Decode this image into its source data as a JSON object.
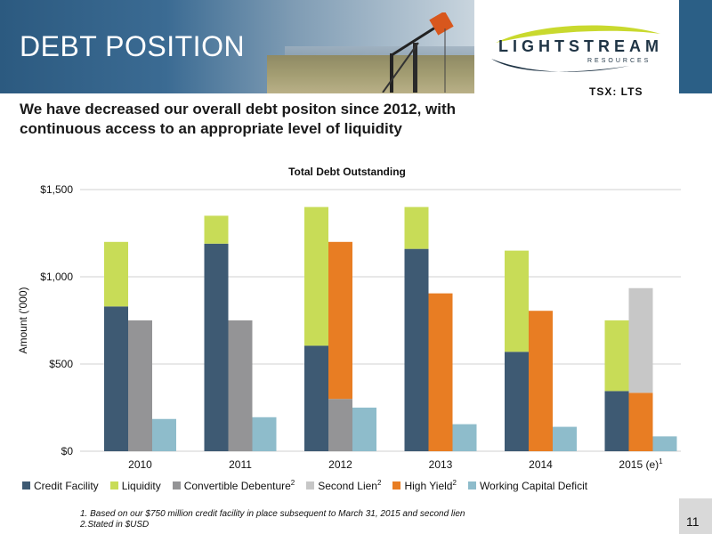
{
  "header": {
    "title": "DEBT POSITION"
  },
  "logo": {
    "name": "LIGHTSTREAM",
    "sub": "RESOURCES",
    "ticker": "TSX: LTS"
  },
  "subtitle": "We have decreased our overall debt positon since 2012, with continuous access to an appropriate level of liquidity",
  "footnotes": [
    "1. Based on our $750 million credit facility in place subsequent to March 31, 2015 and second lien",
    "2.Stated  in $USD"
  ],
  "page_number": "11",
  "colors": {
    "credit": "#3e5a73",
    "liquidity": "#c8dc57",
    "convertible": "#949496",
    "second_lien": "#c7c7c7",
    "high_yield": "#e87d23",
    "wcd": "#8ebccb",
    "grid": "#d0d0d0"
  },
  "chart_data": {
    "type": "bar",
    "title": "Total Debt Outstanding",
    "ylabel": "Amount ('000)",
    "xlabel": "",
    "ylim": [
      0,
      1500
    ],
    "yticks": [
      0,
      500,
      1000,
      1500
    ],
    "ytick_labels": [
      "$0",
      "$500",
      "$1,000",
      "$1,500"
    ],
    "categories": [
      "2010",
      "2011",
      "2012",
      "2013",
      "2014",
      "2015 (e)"
    ],
    "category_sups": [
      "",
      "",
      "",
      "",
      "",
      "1"
    ],
    "legend_position": "bottom",
    "legend": [
      {
        "label": "Credit Facility",
        "sup": "",
        "color_key": "credit"
      },
      {
        "label": "Liquidity",
        "sup": "",
        "color_key": "liquidity"
      },
      {
        "label": "Convertible Debenture",
        "sup": "2",
        "color_key": "convertible"
      },
      {
        "label": "Second Lien",
        "sup": "2",
        "color_key": "second_lien"
      },
      {
        "label": "High Yield",
        "sup": "2",
        "color_key": "high_yield"
      },
      {
        "label": "Working Capital Deficit",
        "sup": "",
        "color_key": "wcd"
      }
    ],
    "groups": [
      {
        "category": "2010",
        "stacks": [
          [
            {
              "series": "Credit Facility",
              "value": 830
            },
            {
              "series": "Liquidity",
              "value": 370
            }
          ],
          [
            {
              "series": "Convertible Debenture",
              "value": 750
            }
          ],
          [
            {
              "series": "Working Capital Deficit",
              "value": 185
            }
          ]
        ]
      },
      {
        "category": "2011",
        "stacks": [
          [
            {
              "series": "Credit Facility",
              "value": 1190
            },
            {
              "series": "Liquidity",
              "value": 160
            }
          ],
          [
            {
              "series": "Convertible Debenture",
              "value": 750
            }
          ],
          [
            {
              "series": "Working Capital Deficit",
              "value": 195
            }
          ]
        ]
      },
      {
        "category": "2012",
        "stacks": [
          [
            {
              "series": "Credit Facility",
              "value": 605
            },
            {
              "series": "Liquidity",
              "value": 795
            }
          ],
          [
            {
              "series": "Convertible Debenture",
              "value": 300
            },
            {
              "series": "High Yield",
              "value": 900
            }
          ],
          [
            {
              "series": "Working Capital Deficit",
              "value": 250
            }
          ]
        ]
      },
      {
        "category": "2013",
        "stacks": [
          [
            {
              "series": "Credit Facility",
              "value": 1160
            },
            {
              "series": "Liquidity",
              "value": 240
            }
          ],
          [
            {
              "series": "High Yield",
              "value": 905
            }
          ],
          [
            {
              "series": "Working Capital Deficit",
              "value": 155
            }
          ]
        ]
      },
      {
        "category": "2014",
        "stacks": [
          [
            {
              "series": "Credit Facility",
              "value": 570
            },
            {
              "series": "Liquidity",
              "value": 580
            }
          ],
          [
            {
              "series": "High Yield",
              "value": 805
            }
          ],
          [
            {
              "series": "Working Capital Deficit",
              "value": 140
            }
          ]
        ]
      },
      {
        "category": "2015 (e)",
        "stacks": [
          [
            {
              "series": "Credit Facility",
              "value": 345
            },
            {
              "series": "Liquidity",
              "value": 405
            }
          ],
          [
            {
              "series": "High Yield",
              "value": 335
            },
            {
              "series": "Second Lien",
              "value": 600
            }
          ],
          [
            {
              "series": "Working Capital Deficit",
              "value": 85
            }
          ]
        ]
      }
    ]
  }
}
